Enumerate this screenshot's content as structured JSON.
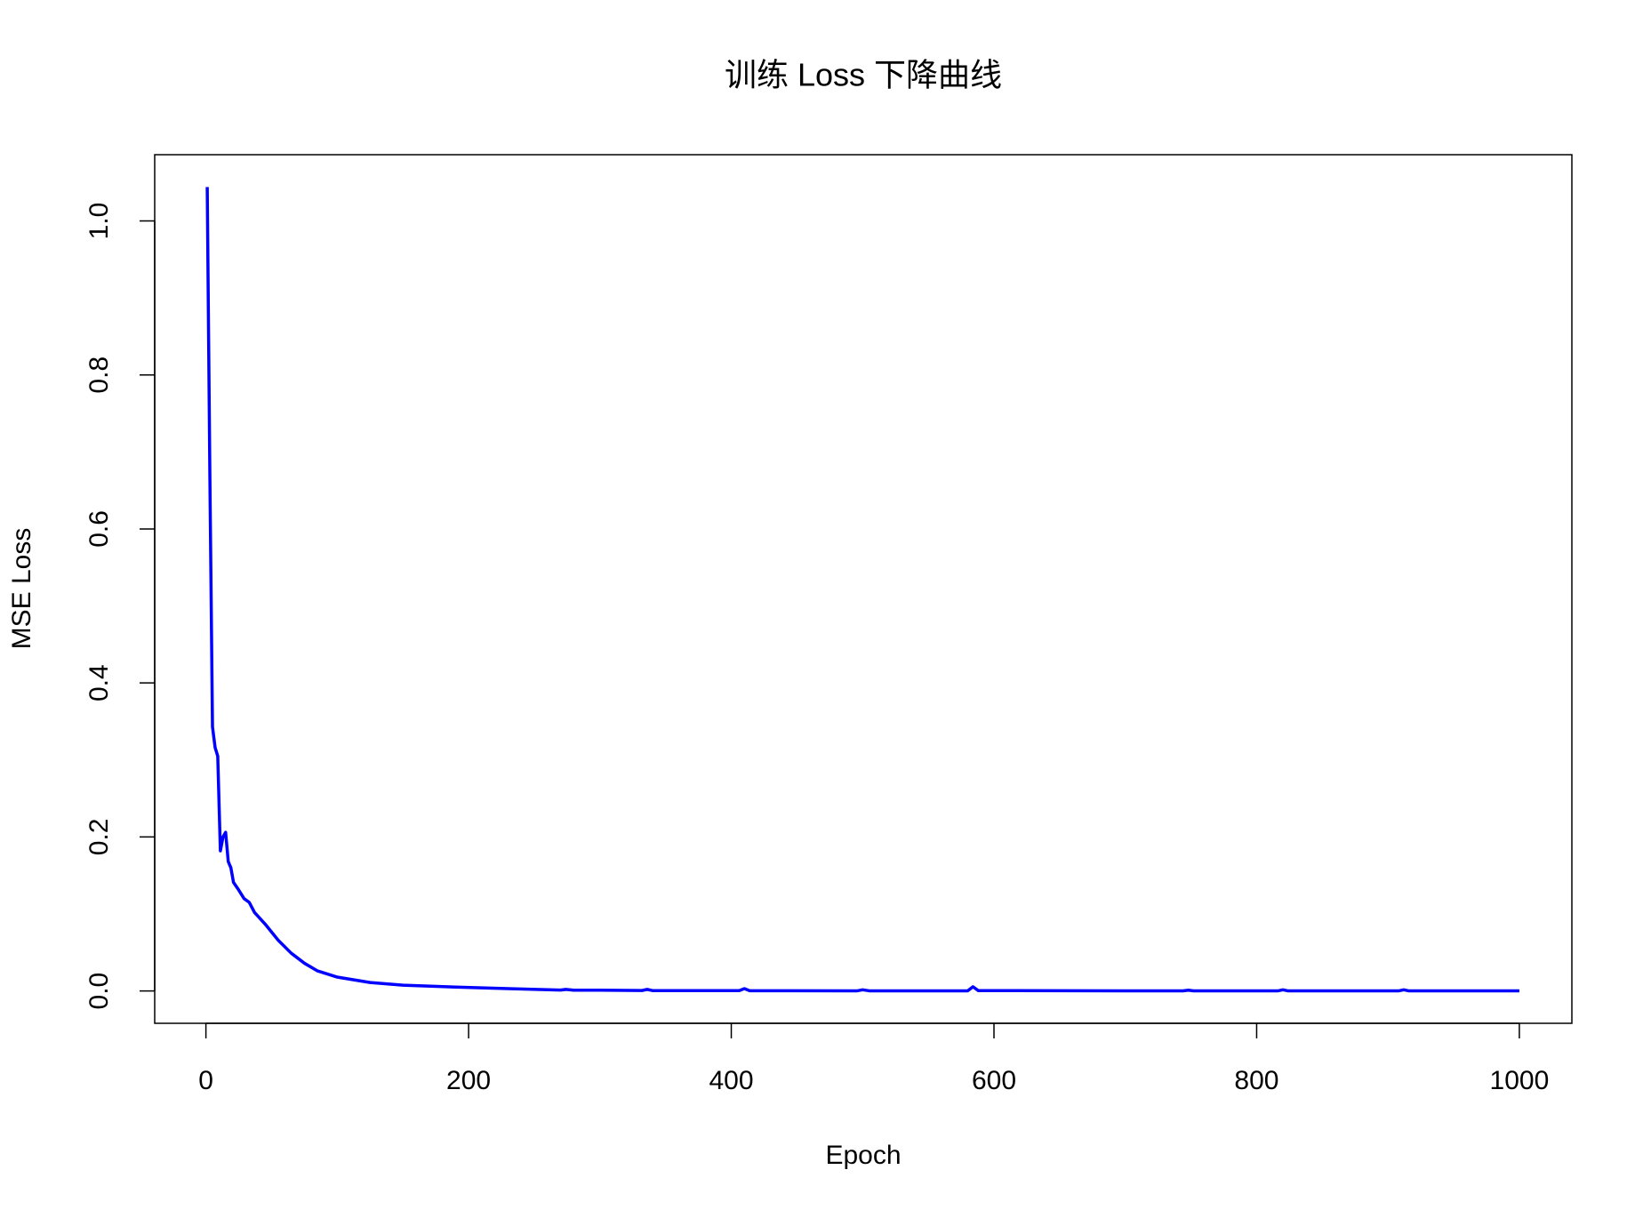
{
  "chart_data": {
    "type": "line",
    "title": "训练 Loss 下降曲线",
    "xlabel": "Epoch",
    "ylabel": "MSE Loss",
    "x": [
      1,
      3,
      5,
      7,
      9,
      11,
      13,
      15,
      17,
      19,
      21,
      25,
      29,
      33,
      37,
      45,
      55,
      65,
      75,
      85,
      100,
      125,
      150,
      190,
      230,
      270,
      274,
      280,
      300,
      332,
      336,
      340,
      406,
      410,
      414,
      496,
      500,
      505,
      580,
      584,
      588,
      700,
      744,
      748,
      752,
      816,
      820,
      824,
      908,
      912,
      916,
      1000
    ],
    "values": [
      1.044,
      0.67,
      0.343,
      0.316,
      0.305,
      0.182,
      0.2,
      0.206,
      0.168,
      0.16,
      0.141,
      0.131,
      0.12,
      0.115,
      0.102,
      0.087,
      0.066,
      0.049,
      0.036,
      0.026,
      0.018,
      0.011,
      0.0075,
      0.005,
      0.003,
      0.0012,
      0.002,
      0.001,
      0.001,
      0.0006,
      0.002,
      0.0005,
      0.0004,
      0.003,
      0.0003,
      0.0002,
      0.0015,
      0.0002,
      0.0002,
      0.0055,
      0.0005,
      0.0001,
      0.0001,
      0.001,
      0.0001,
      0.0001,
      0.0015,
      0.0001,
      0.0001,
      0.0015,
      0.0001,
      0.0001
    ],
    "color": "#0000ff",
    "xlim": [
      -39,
      1040
    ],
    "ylim": [
      -0.042,
      1.086
    ],
    "xticks": [
      0,
      200,
      400,
      600,
      800,
      1000
    ],
    "yticks": [
      {
        "value": 0,
        "label": "0.0"
      },
      0.2,
      0.4,
      0.6,
      0.8,
      {
        "value": 1,
        "label": "1.0"
      }
    ],
    "grid": false
  }
}
